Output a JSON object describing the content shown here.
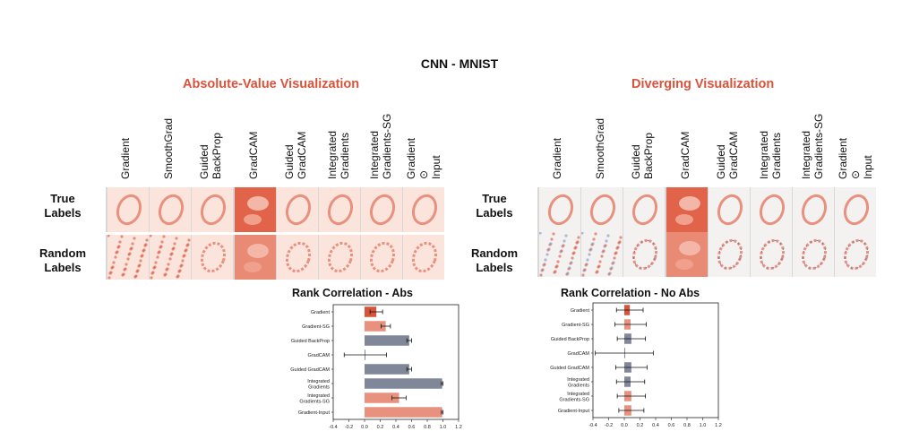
{
  "title": "CNN - MNIST",
  "sections": {
    "abs": {
      "title": "Absolute-Value Visualization"
    },
    "div": {
      "title": "Diverging Visualization"
    }
  },
  "columns": [
    {
      "lines": [
        "Gradient"
      ]
    },
    {
      "lines": [
        "SmoothGrad"
      ]
    },
    {
      "lines": [
        "Guided",
        "BackProp"
      ]
    },
    {
      "lines": [
        "GradCAM"
      ]
    },
    {
      "lines": [
        "Guided",
        "GradCAM"
      ]
    },
    {
      "lines": [
        "Integrated",
        "Gradients"
      ]
    },
    {
      "lines": [
        "Integrated",
        "Gradients-SG"
      ]
    },
    {
      "lines": [
        "Gradient",
        "⊙",
        "Input"
      ]
    }
  ],
  "rows": [
    {
      "label_line1": "True",
      "label_line2": "Labels"
    },
    {
      "label_line1": "Random",
      "label_line2": "Labels"
    }
  ],
  "colors": {
    "red": "#d9533b",
    "salmon": "#e8917f",
    "slate": "#7f8799",
    "grey_bg": "#d8d8d8"
  },
  "chart_data": [
    {
      "type": "bar",
      "title": "Rank Correlation - Abs",
      "categories": [
        "Gradient",
        "Gradient-SG",
        "Guided BackProp",
        "GradCAM",
        "Guided GradCAM",
        "Integrated Gradients",
        "Integrated Gradients-SG",
        "Gradient-Input"
      ],
      "category_lines": [
        [
          "Gradient"
        ],
        [
          "Gradient-SG"
        ],
        [
          "Guided BackProp"
        ],
        [
          "GradCAM"
        ],
        [
          "Guided GradCAM"
        ],
        [
          "Integrated",
          "Gradients"
        ],
        [
          "Integrated",
          "Gradients-SG"
        ],
        [
          "Gradient-Input"
        ]
      ],
      "values": [
        0.15,
        0.27,
        0.57,
        0.01,
        0.57,
        0.99,
        0.44,
        0.99
      ],
      "errors": [
        0.08,
        0.06,
        0.03,
        0.27,
        0.03,
        0.01,
        0.09,
        0.01
      ],
      "bar_colors": [
        "#d9533b",
        "#e8917f",
        "#7f8799",
        "#7f8799",
        "#7f8799",
        "#7f8799",
        "#e8917f",
        "#e8917f"
      ],
      "xlim": [
        -0.4,
        1.2
      ],
      "xticks": [
        "-0.4",
        "-0.2",
        "0.0",
        "0.2",
        "0.4",
        "0.6",
        "0.8",
        "1.0",
        "1.2"
      ]
    },
    {
      "type": "bar",
      "title": "Rank Correlation - No Abs",
      "categories": [
        "Gradient",
        "Gradient-SG",
        "Guided BackProp",
        "GradCAM",
        "Guided GradCAM",
        "Integrated Gradients",
        "Integrated Gradients-SG",
        "Gradient-Input"
      ],
      "category_lines": [
        [
          "Gradient"
        ],
        [
          "Gradient-SG"
        ],
        [
          "Guided BackProp"
        ],
        [
          "GradCAM"
        ],
        [
          "Guided GradCAM"
        ],
        [
          "Integrated",
          "Gradients"
        ],
        [
          "Integrated",
          "Gradients-SG"
        ],
        [
          "Gradient-Input"
        ]
      ],
      "values": [
        0.07,
        0.08,
        0.09,
        0.0,
        0.09,
        0.08,
        0.09,
        0.09
      ],
      "errors": [
        0.17,
        0.2,
        0.18,
        0.37,
        0.2,
        0.18,
        0.18,
        0.16
      ],
      "bar_colors": [
        "#d9533b",
        "#e8917f",
        "#7f8799",
        "#7f8799",
        "#7f8799",
        "#7f8799",
        "#e8917f",
        "#e8917f"
      ],
      "xlim": [
        -0.4,
        1.2
      ],
      "xticks": [
        "-0.4",
        "-0.2",
        "0.0",
        "0.2",
        "0.4",
        "0.6",
        "0.8",
        "1.0",
        "1.2"
      ]
    }
  ]
}
